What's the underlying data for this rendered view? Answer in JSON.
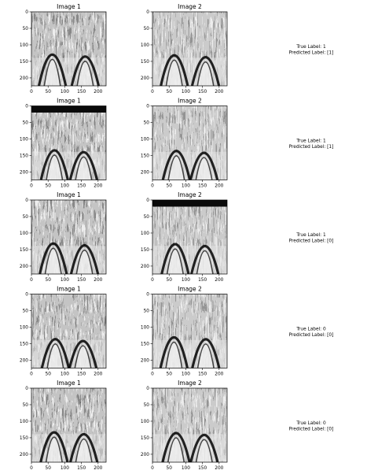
{
  "chart_data": {
    "type": "image-grid",
    "x_ticks": [
      0,
      50,
      100,
      150,
      200
    ],
    "y_ticks": [
      0,
      50,
      100,
      150,
      200
    ],
    "xlim": [
      0,
      224
    ],
    "ylim": [
      224,
      0
    ],
    "rows": [
      {
        "image1_title": "Image 1",
        "image2_title": "Image 2",
        "true_label": "True Label: 1",
        "predicted_label": "Predicted Label: [1]"
      },
      {
        "image1_title": "Image 1",
        "image2_title": "Image 2",
        "true_label": "True Label: 1",
        "predicted_label": "Predicted Label: [1]"
      },
      {
        "image1_title": "Image 1",
        "image2_title": "Image 2",
        "true_label": "True Label: 1",
        "predicted_label": "Predicted Label: [0]"
      },
      {
        "image1_title": "Image 1",
        "image2_title": "Image 2",
        "true_label": "True Label: 0",
        "predicted_label": "Predicted Label: [0]"
      },
      {
        "image1_title": "Image 1",
        "image2_title": "Image 2",
        "true_label": "True Label: 0",
        "predicted_label": "Predicted Label: [0]"
      }
    ]
  }
}
